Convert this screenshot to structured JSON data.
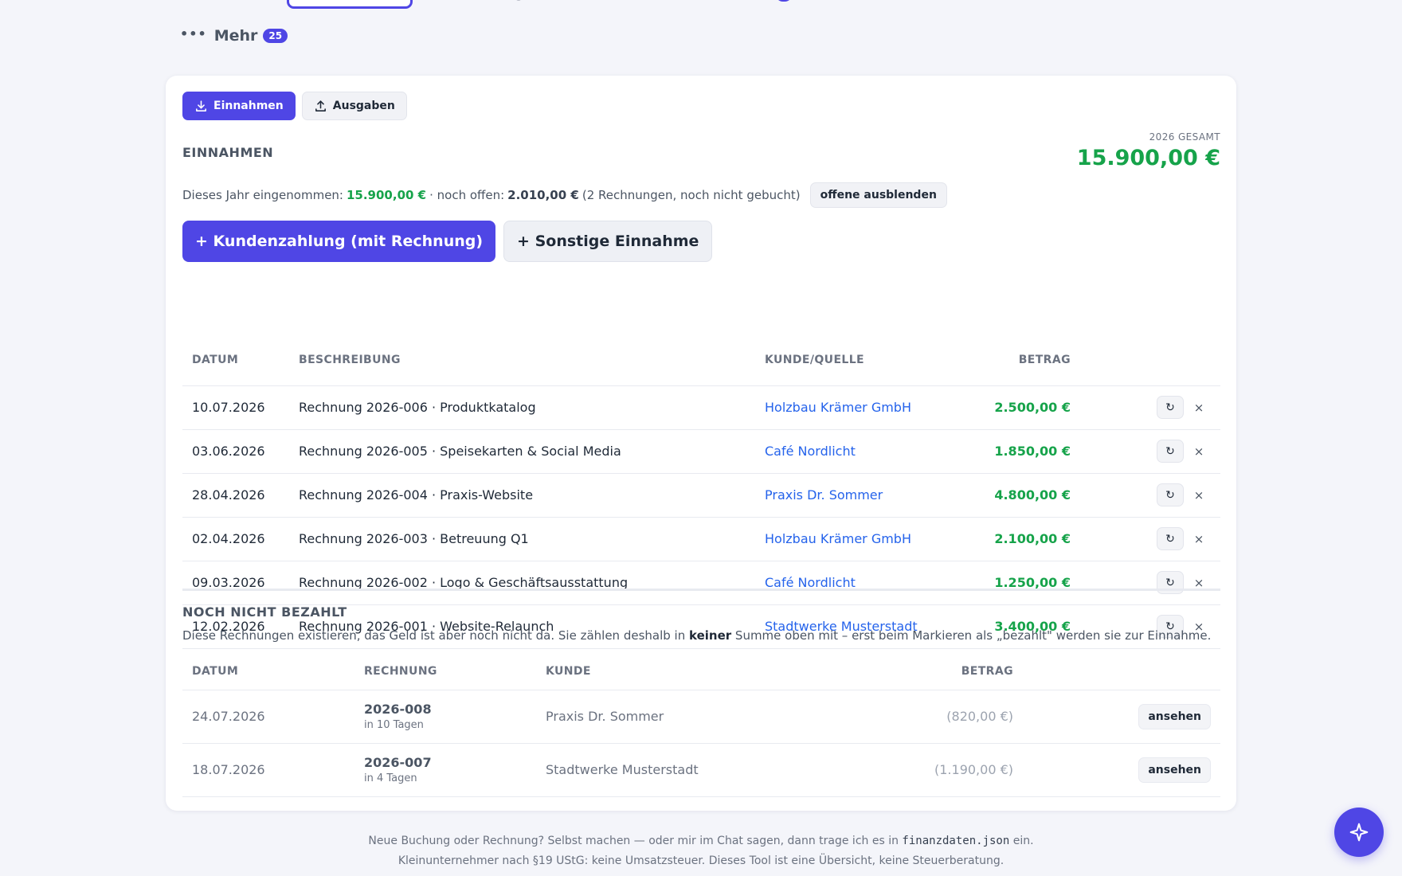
{
  "nav": {
    "more_label": "Mehr",
    "more_count": "25"
  },
  "toggle": {
    "income_label": "Einnahmen",
    "expense_label": "Ausgaben"
  },
  "income": {
    "title": "EINNAHMEN",
    "total_label": "2026 GESAMT",
    "total_value": "15.900,00 €",
    "summary": {
      "prefix": "Dieses Jahr eingenommen:",
      "earned": "15.900,00 €",
      "middle": "· noch offen:",
      "open": "2.010,00 €",
      "suffix": "(2 Rechnungen, noch nicht gebucht)",
      "hide_button": "offene ausblenden"
    },
    "add_customer_payment": "+ Kundenzahlung (mit Rechnung)",
    "add_other_income": "+ Sonstige Einnahme",
    "columns": {
      "date": "DATUM",
      "description": "BESCHREIBUNG",
      "customer": "KUNDE/QUELLE",
      "amount": "BETRAG"
    },
    "rows": [
      {
        "date": "10.07.2026",
        "description": "Rechnung 2026-006 · Produktkatalog",
        "customer": "Holzbau Krämer GmbH",
        "amount": "2.500,00 €"
      },
      {
        "date": "03.06.2026",
        "description": "Rechnung 2026-005 · Speisekarten & Social Media",
        "customer": "Café Nordlicht",
        "amount": "1.850,00 €"
      },
      {
        "date": "28.04.2026",
        "description": "Rechnung 2026-004 · Praxis-Website",
        "customer": "Praxis Dr. Sommer",
        "amount": "4.800,00 €"
      },
      {
        "date": "02.04.2026",
        "description": "Rechnung 2026-003 · Betreuung Q1",
        "customer": "Holzbau Krämer GmbH",
        "amount": "2.100,00 €"
      },
      {
        "date": "09.03.2026",
        "description": "Rechnung 2026-002 · Logo & Geschäftsausstattung",
        "customer": "Café Nordlicht",
        "amount": "1.250,00 €"
      },
      {
        "date": "12.02.2026",
        "description": "Rechnung 2026-001 · Website-Relaunch",
        "customer": "Stadtwerke Musterstadt",
        "amount": "3.400,00 €"
      }
    ],
    "row_refresh_glyph": "↻",
    "row_delete_glyph": "×"
  },
  "unpaid": {
    "title": "NOCH NICHT BEZAHLT",
    "note_before": "Diese Rechnungen existieren, das Geld ist aber noch nicht da. Sie zählen deshalb in",
    "note_bold": "keiner",
    "note_after": "Summe oben mit – erst beim Markieren als „bezahlt\" werden sie zur Einnahme.",
    "columns": {
      "date": "DATUM",
      "invoice": "RECHNUNG",
      "customer": "KUNDE",
      "amount": "BETRAG"
    },
    "rows": [
      {
        "date": "24.07.2026",
        "invoice": "2026-008",
        "due": "in 10 Tagen",
        "customer": "Praxis Dr. Sommer",
        "amount": "(820,00 €)",
        "action": "ansehen"
      },
      {
        "date": "18.07.2026",
        "invoice": "2026-007",
        "due": "in 4 Tagen",
        "customer": "Stadtwerke Musterstadt",
        "amount": "(1.190,00 €)",
        "action": "ansehen"
      }
    ]
  },
  "footer": {
    "line1_before": "Neue Buchung oder Rechnung? Selbst machen — oder mir im Chat sagen, dann trage ich es in",
    "line1_code": "finanzdaten.json",
    "line1_after": "ein.",
    "line2": "Kleinunternehmer nach §19 UStG: keine Umsatzsteuer. Dieses Tool ist eine Übersicht, keine Steuerberatung."
  },
  "colors": {
    "accent": "#4f46e5",
    "positive": "#16a34a",
    "link": "#2563eb"
  },
  "icons": {
    "fab": "sparkle-icon",
    "income": "download-icon",
    "expense": "upload-icon"
  }
}
